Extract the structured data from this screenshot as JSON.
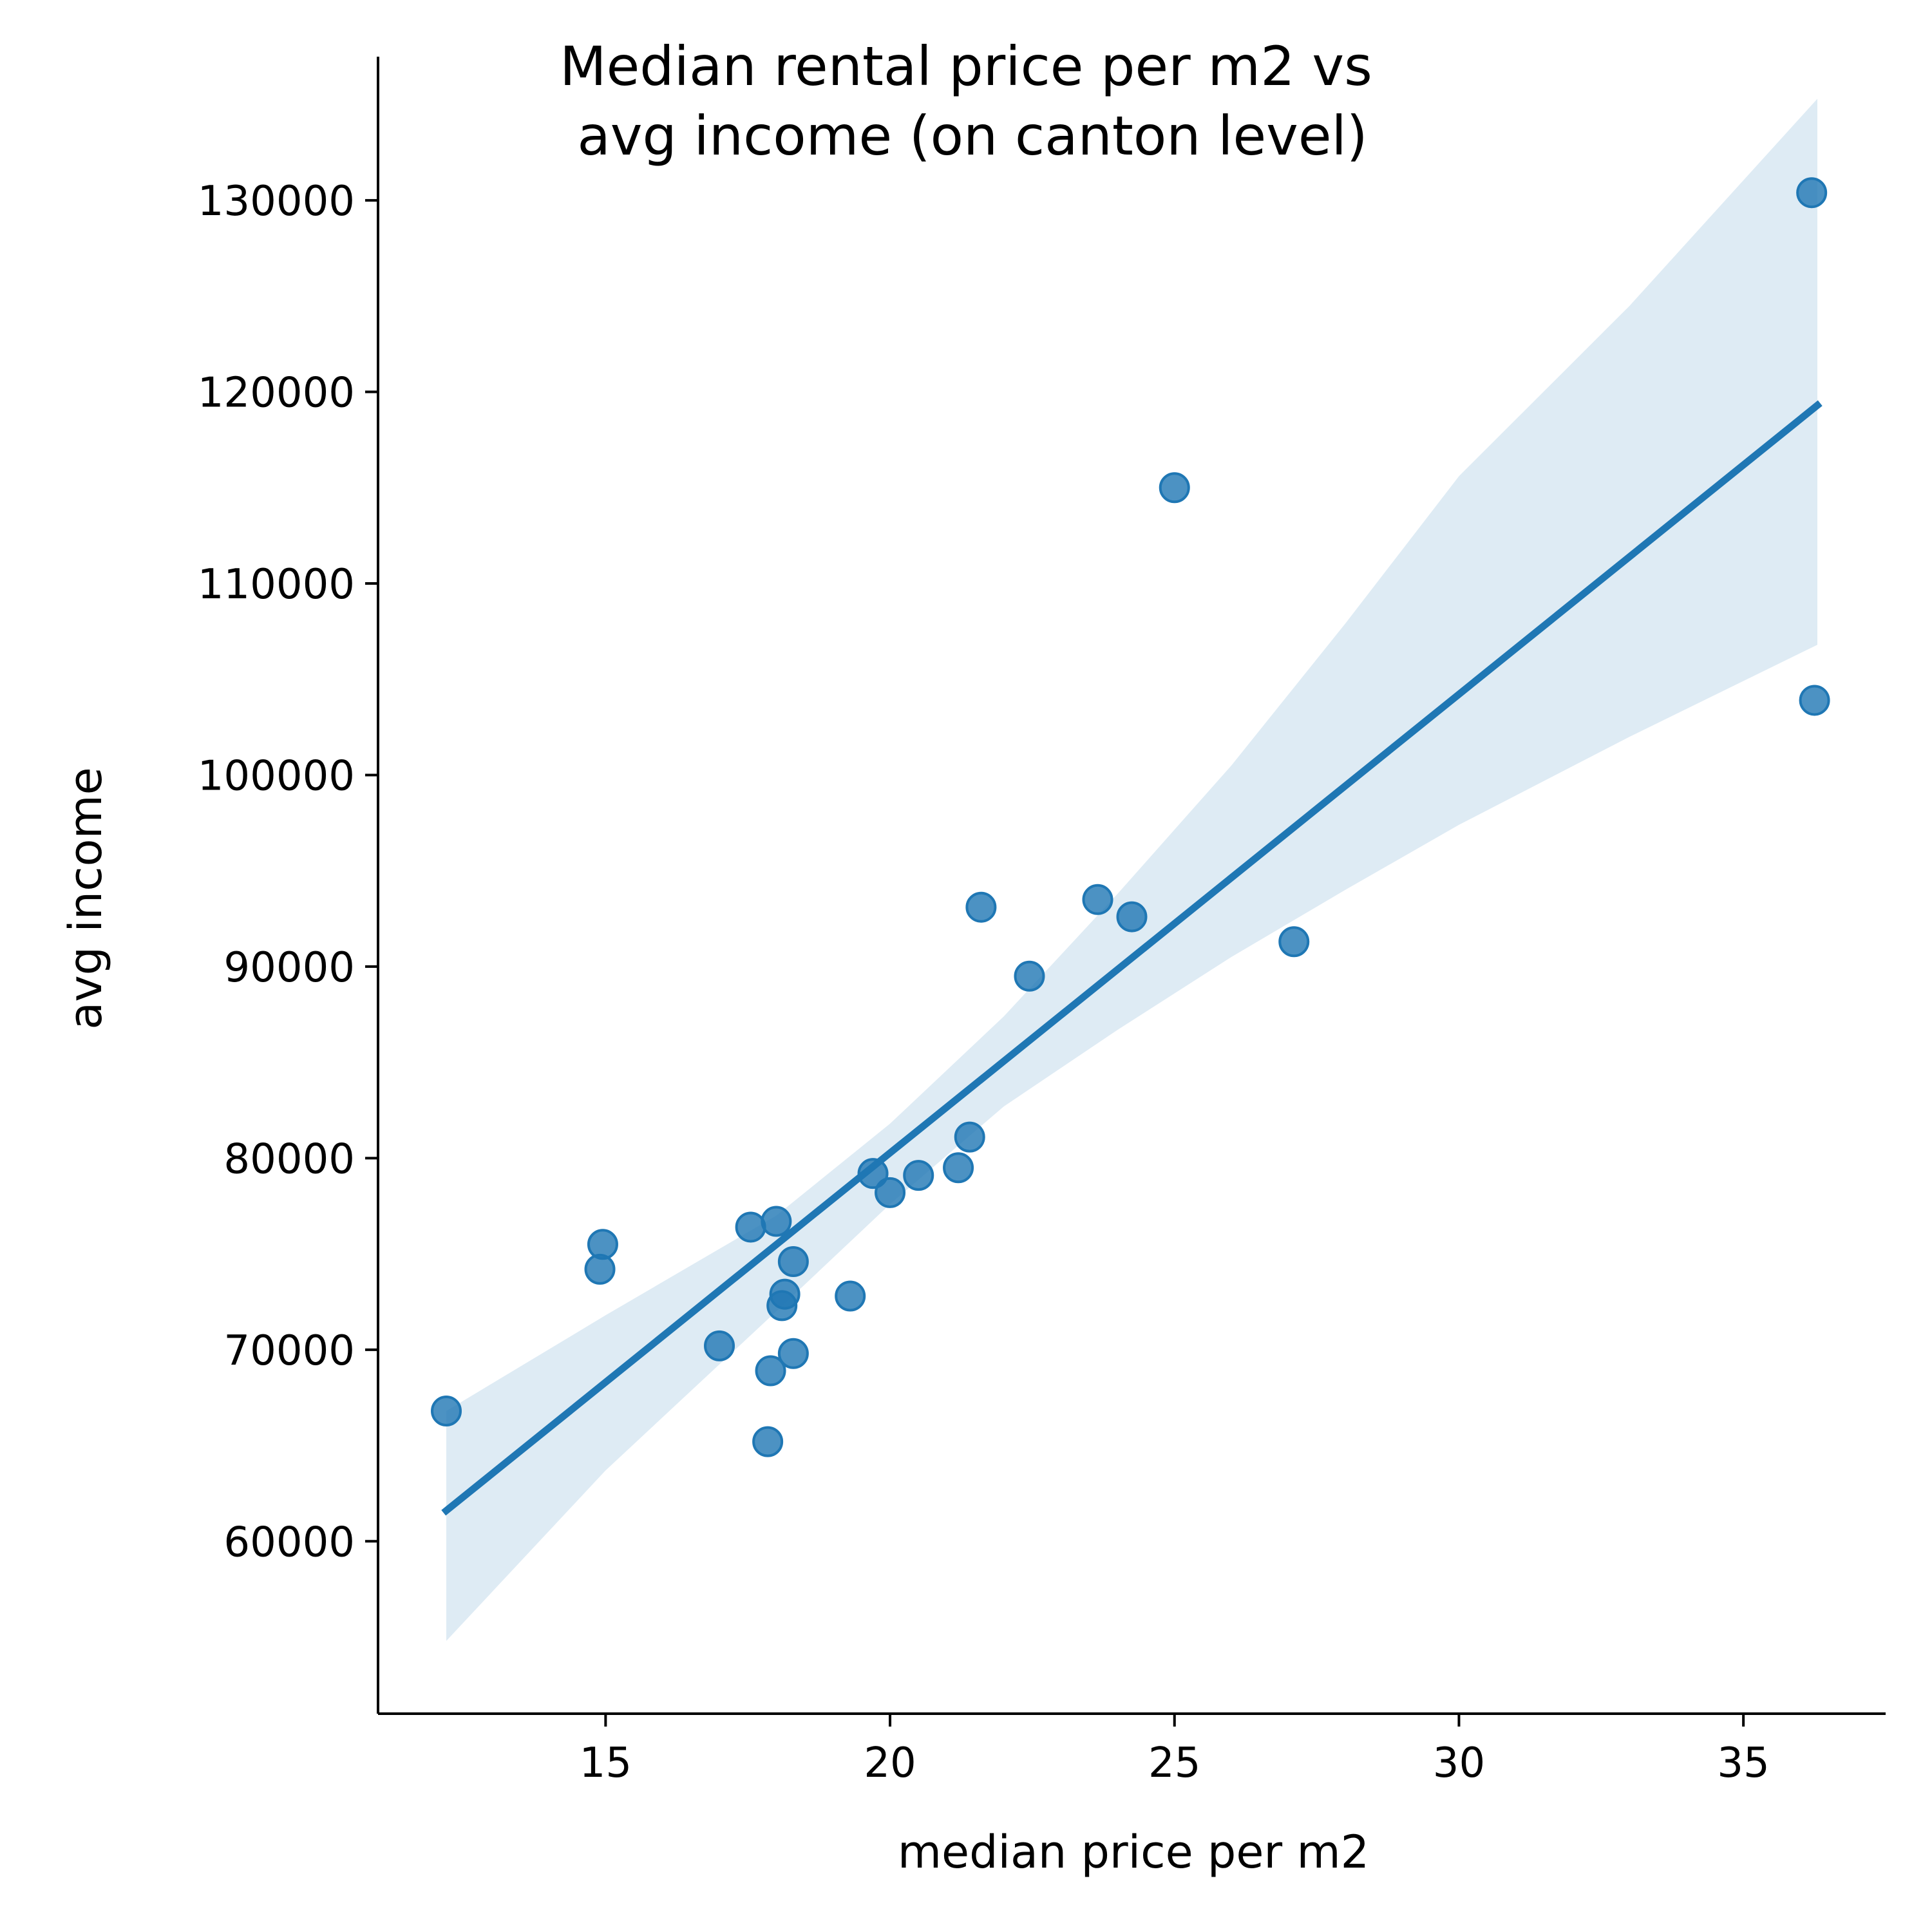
{
  "chart_data": {
    "type": "scatter",
    "title_lines": [
      "Median rental price per m2 vs",
      "avg income (on canton level)"
    ],
    "xlabel": "median price per m2",
    "ylabel": "avg income",
    "xlim": [
      11.0,
      37.5
    ],
    "ylim": [
      51000,
      137500
    ],
    "x_ticks": [
      15,
      20,
      25,
      30,
      35
    ],
    "y_ticks": [
      60000,
      70000,
      80000,
      90000,
      100000,
      110000,
      120000,
      130000
    ],
    "grid": false,
    "legend": "none",
    "colors": {
      "points": "#1f77b4",
      "line": "#1f77b4",
      "confidence_band": "#1f77b4"
    },
    "series": [
      {
        "points": [
          {
            "x": 12.2,
            "y": 66800
          },
          {
            "x": 14.9,
            "y": 74200
          },
          {
            "x": 14.95,
            "y": 75500
          },
          {
            "x": 17.0,
            "y": 70200
          },
          {
            "x": 17.55,
            "y": 76400
          },
          {
            "x": 17.85,
            "y": 65200
          },
          {
            "x": 17.9,
            "y": 68900
          },
          {
            "x": 18.0,
            "y": 76700
          },
          {
            "x": 18.1,
            "y": 72300
          },
          {
            "x": 18.15,
            "y": 72900
          },
          {
            "x": 18.3,
            "y": 74600
          },
          {
            "x": 18.3,
            "y": 69800
          },
          {
            "x": 19.3,
            "y": 72800
          },
          {
            "x": 19.7,
            "y": 79200
          },
          {
            "x": 20.0,
            "y": 78200
          },
          {
            "x": 20.5,
            "y": 79100
          },
          {
            "x": 21.2,
            "y": 79500
          },
          {
            "x": 21.4,
            "y": 81100
          },
          {
            "x": 21.6,
            "y": 93100
          },
          {
            "x": 22.45,
            "y": 89500
          },
          {
            "x": 23.65,
            "y": 93500
          },
          {
            "x": 24.25,
            "y": 92600
          },
          {
            "x": 25.0,
            "y": 115000
          },
          {
            "x": 27.1,
            "y": 91300
          },
          {
            "x": 36.2,
            "y": 130400
          },
          {
            "x": 36.25,
            "y": 103900
          }
        ]
      }
    ],
    "regression": {
      "x_range": [
        12.2,
        36.3
      ],
      "y_at_range": [
        61600,
        119300
      ]
    },
    "confidence_band": {
      "x": [
        12.2,
        15.0,
        18.0,
        20.0,
        22.0,
        24.0,
        26.0,
        28.0,
        30.0,
        33.0,
        36.3
      ],
      "lower": [
        54800,
        63700,
        72000,
        77600,
        82700,
        86700,
        90500,
        94000,
        97400,
        102000,
        106800
      ],
      "upper": [
        66800,
        71800,
        77000,
        81800,
        87400,
        93800,
        100500,
        107900,
        115600,
        124500,
        135300
      ]
    }
  }
}
